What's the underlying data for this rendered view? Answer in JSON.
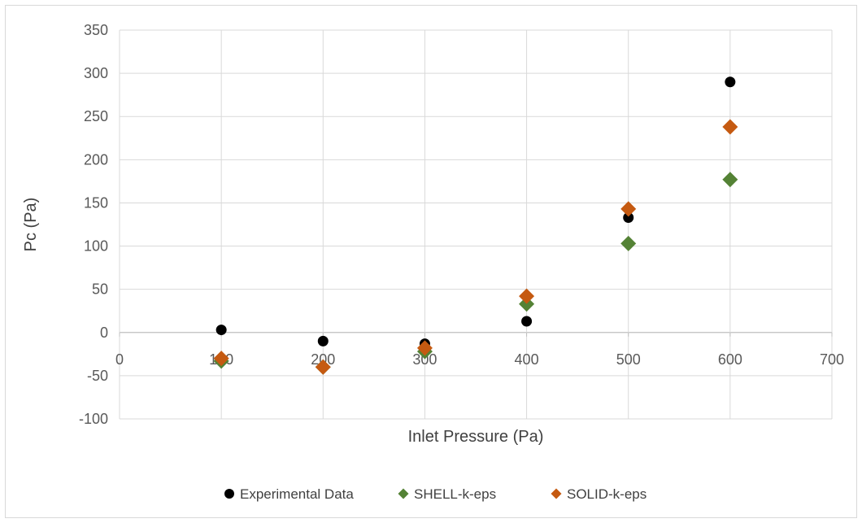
{
  "chart_data": {
    "type": "scatter",
    "xlabel": "Inlet Pressure (Pa)",
    "ylabel": "Pc (Pa)",
    "xlim": [
      0,
      700
    ],
    "ylim": [
      -100,
      350
    ],
    "x_ticks": [
      0,
      100,
      200,
      300,
      400,
      500,
      600,
      700
    ],
    "y_ticks": [
      -100,
      -50,
      0,
      50,
      100,
      150,
      200,
      250,
      300,
      350
    ],
    "grid": true,
    "legend_position": "bottom",
    "series": [
      {
        "name": "Experimental Data",
        "marker": "circle",
        "color": "#000000",
        "points": [
          [
            100,
            3
          ],
          [
            200,
            -10
          ],
          [
            300,
            -13
          ],
          [
            400,
            13
          ],
          [
            500,
            133
          ],
          [
            600,
            290
          ]
        ]
      },
      {
        "name": "SHELL-k-eps",
        "marker": "diamond",
        "color": "#548235",
        "points": [
          [
            100,
            -33
          ],
          [
            200,
            -40
          ],
          [
            300,
            -22
          ],
          [
            400,
            33
          ],
          [
            500,
            103
          ],
          [
            600,
            177
          ]
        ]
      },
      {
        "name": "SOLID-k-eps",
        "marker": "diamond",
        "color": "#c55a11",
        "points": [
          [
            100,
            -30
          ],
          [
            200,
            -40
          ],
          [
            300,
            -18
          ],
          [
            400,
            42
          ],
          [
            500,
            143
          ],
          [
            600,
            238
          ]
        ]
      }
    ]
  }
}
